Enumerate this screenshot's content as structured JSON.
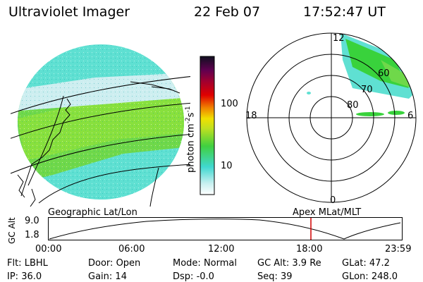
{
  "header": {
    "title": "Ultraviolet Imager",
    "date": "22 Feb 07",
    "time": "17:52:47 UT"
  },
  "colorbar": {
    "unit_label": "photon cm",
    "unit_sup1": "-2",
    "unit_s": "s",
    "unit_sup2": "-1",
    "ticks": [
      "100",
      "10"
    ]
  },
  "polar": {
    "mlt_labels": [
      "12",
      "18",
      "0",
      "6"
    ],
    "lat_labels": [
      "60",
      "70",
      "80"
    ]
  },
  "panels": {
    "left_label": "Geographic Lat/Lon",
    "right_label": "Apex  MLat/MLT"
  },
  "altitude_plot": {
    "axis_title": "GC Alt",
    "y_ticks": [
      "9.0",
      "1.8"
    ],
    "x_ticks": [
      "00:00",
      "06:00",
      "12:00",
      "18:00",
      "23:59"
    ],
    "marker_color": "#d00000"
  },
  "status": {
    "row1": [
      {
        "key": "Flt:",
        "value": "LBHL"
      },
      {
        "key": "Door:",
        "value": "Open"
      },
      {
        "key": "Mode:",
        "value": "Normal"
      },
      {
        "key": "GC Alt:",
        "value": "3.9 Re"
      },
      {
        "key": "GLat:",
        "value": "47.2"
      }
    ],
    "row2": [
      {
        "key": "IP:",
        "value": "36.0"
      },
      {
        "key": "Gain:",
        "value": "14"
      },
      {
        "key": "Dsp:",
        "value": "-0.0"
      },
      {
        "key": "Seq:",
        "value": "39"
      },
      {
        "key": "GLon:",
        "value": "248.0"
      }
    ]
  },
  "colors": {
    "aurora_green": "#39d23c",
    "aurora_yellow": "#b8e82a",
    "aurora_cyan": "#5fe0d2",
    "aurora_light": "#cdeef0"
  }
}
